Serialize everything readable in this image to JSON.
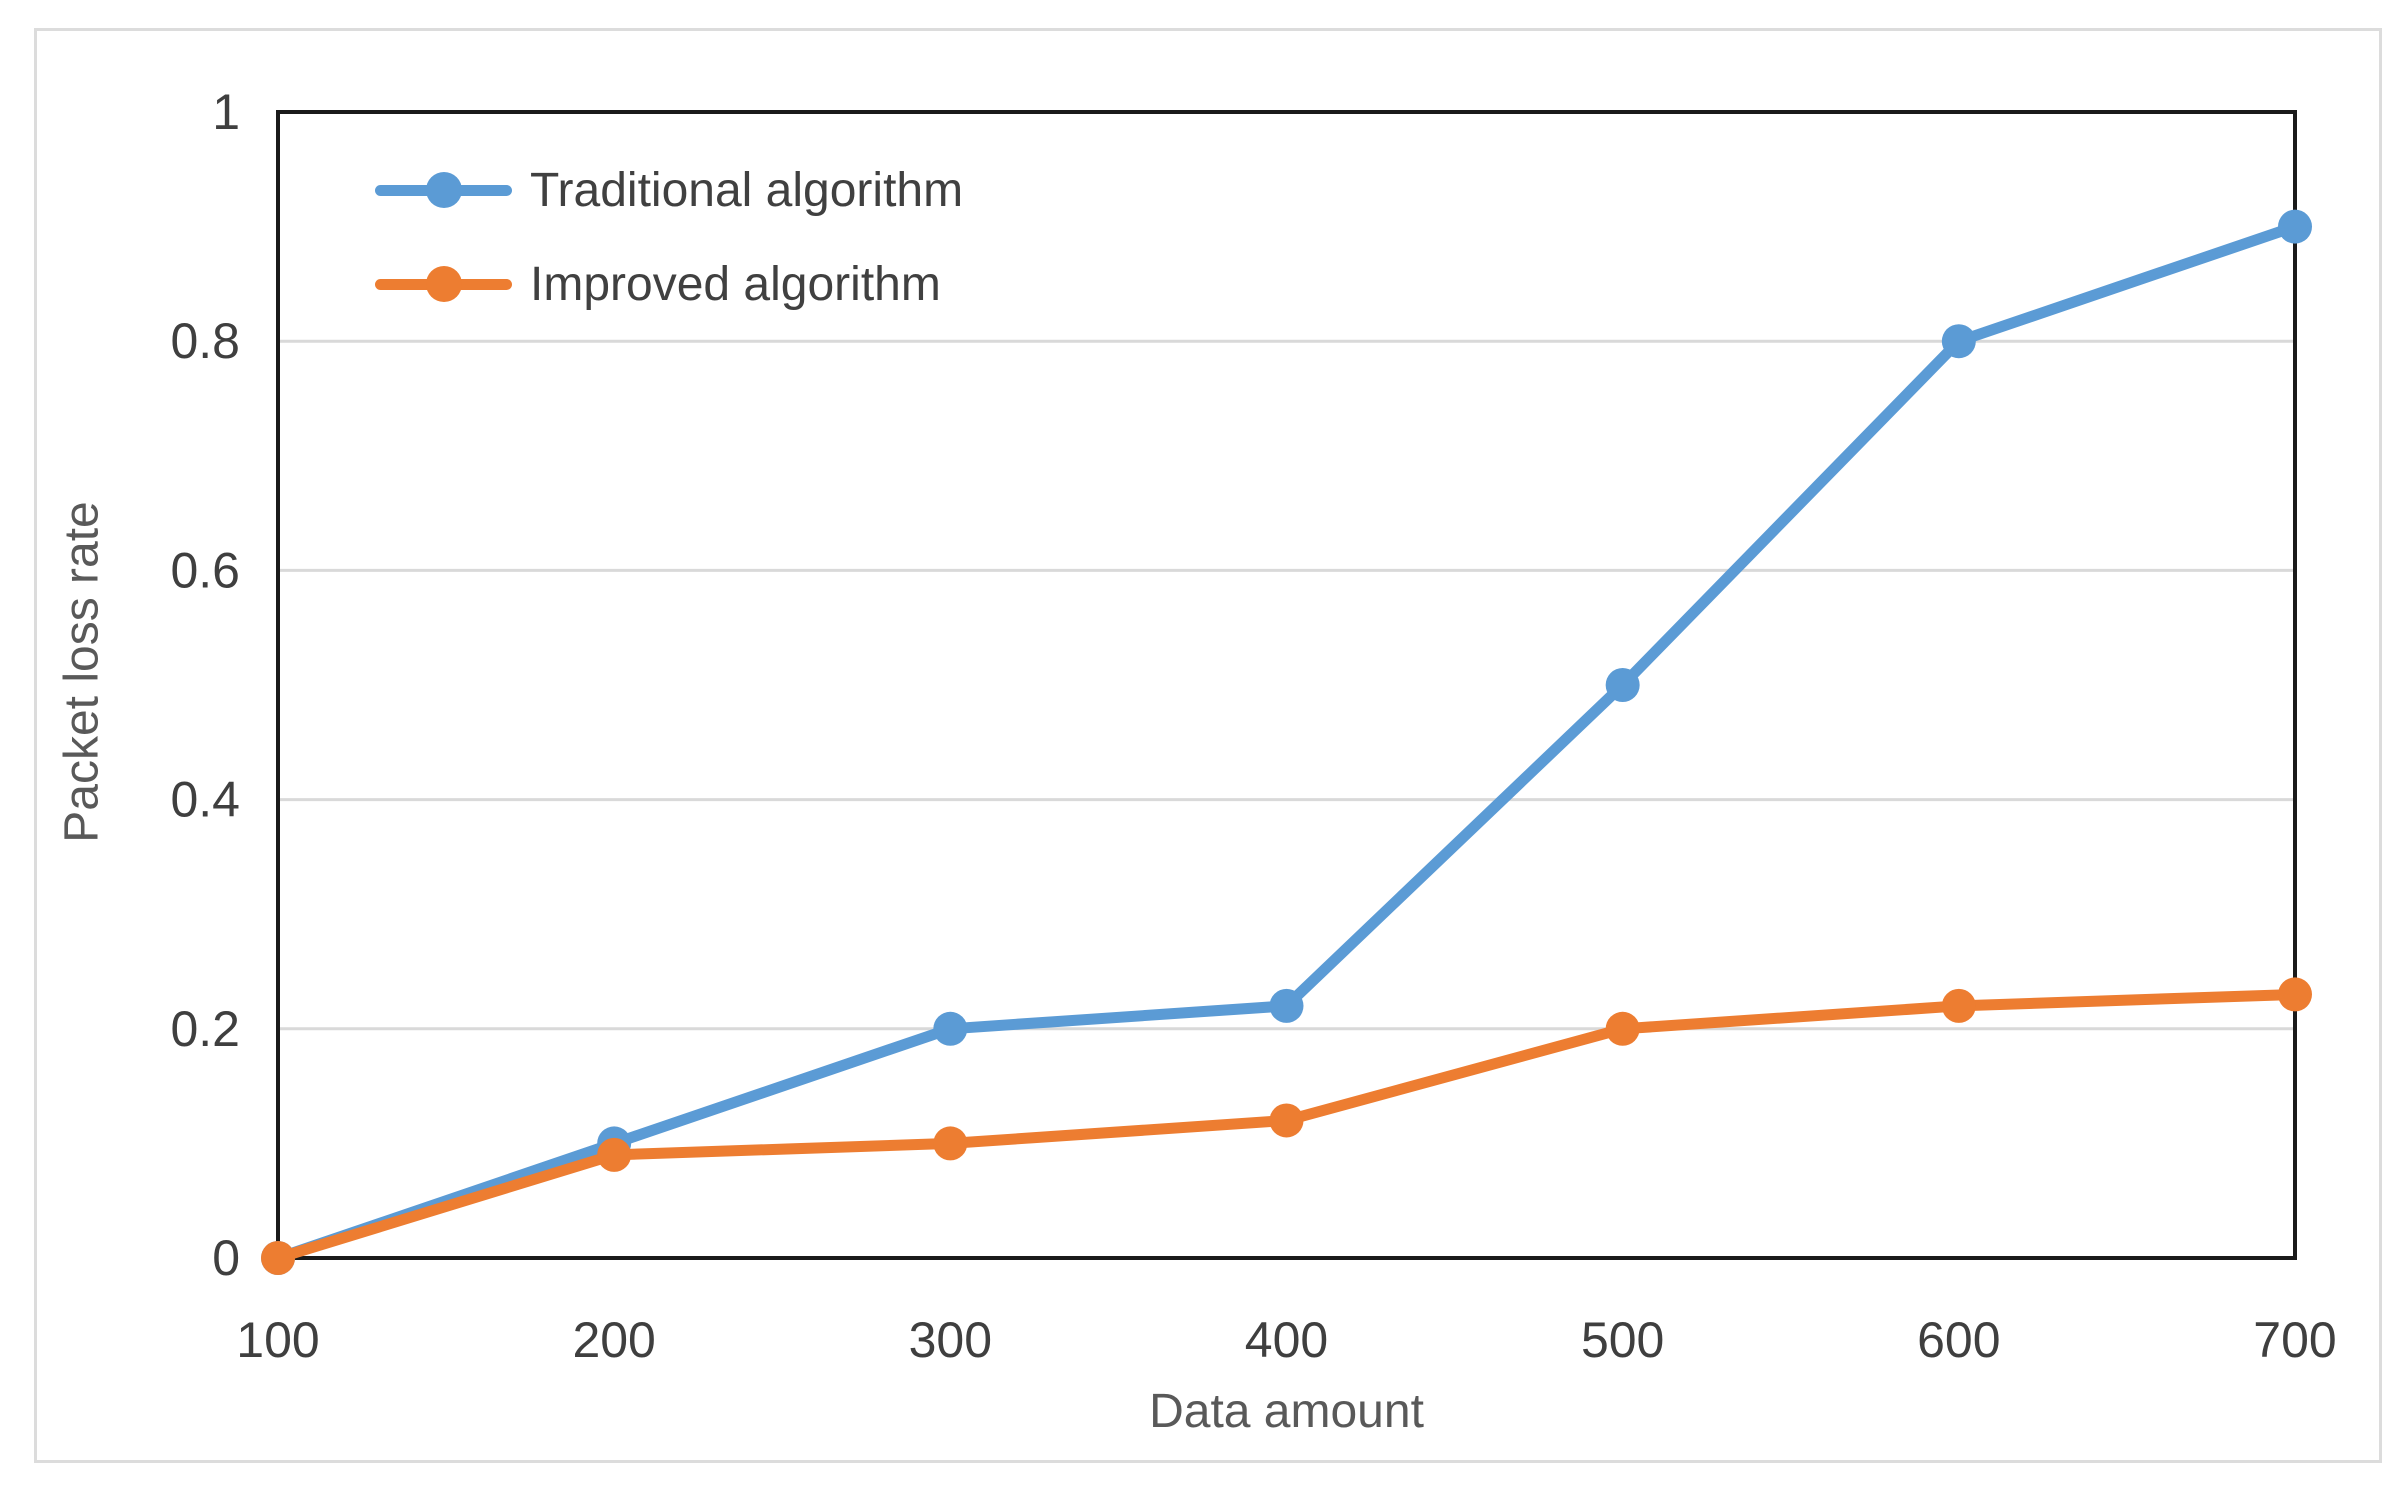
{
  "chart_data": {
    "type": "line",
    "title": "",
    "xlabel": "Data amount",
    "ylabel": "Packet loss rate",
    "x": [
      100,
      200,
      300,
      400,
      500,
      600,
      700
    ],
    "xtick_labels": [
      "100",
      "200",
      "300",
      "400",
      "500",
      "600",
      "700"
    ],
    "ylim": [
      0,
      1
    ],
    "yticks": [
      0,
      0.2,
      0.4,
      0.6,
      0.8,
      1
    ],
    "ytick_labels": [
      "0",
      "0.2",
      "0.4",
      "0.6",
      "0.8",
      "1"
    ],
    "grid": "horizontal",
    "legend_position": "inside-top-left",
    "marker": "circle",
    "series": [
      {
        "name": "Traditional algorithm",
        "color": "#5B9BD5",
        "values": [
          0,
          0.1,
          0.2,
          0.22,
          0.5,
          0.8,
          0.9
        ]
      },
      {
        "name": "Improved algorithm",
        "color": "#ED7D31",
        "values": [
          0,
          0.09,
          0.1,
          0.12,
          0.2,
          0.22,
          0.23
        ]
      }
    ]
  },
  "style_colors": {
    "tick_text": "#3f3f3f",
    "axis_title_text": "#595959",
    "gridline": "#d9d9d9",
    "plot_border": "#1a1a1a",
    "figure_border": "#dcdcdc",
    "background": "#ffffff"
  }
}
